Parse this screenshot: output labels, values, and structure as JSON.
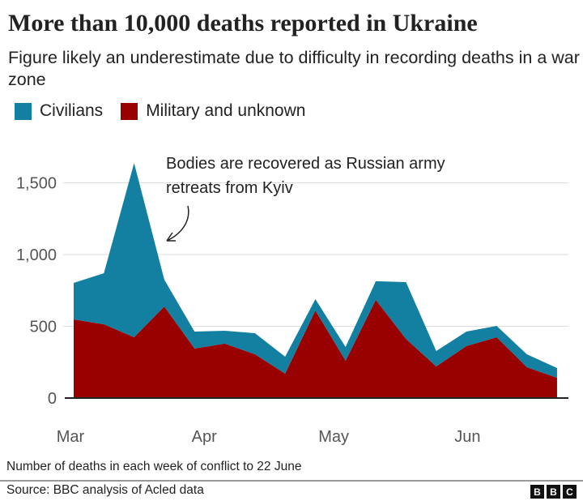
{
  "header": {
    "title": "More than 10,000 deaths reported in Ukraine",
    "subtitle": "Figure likely an underestimate due to difficulty in recording deaths in a war zone"
  },
  "colors": {
    "civilians": "#1380A1",
    "military": "#990000"
  },
  "chart_data": {
    "type": "area",
    "stacked": true,
    "x": [
      "2022-03-01",
      "2022-03-08",
      "2022-03-15",
      "2022-03-22",
      "2022-03-29",
      "2022-04-05",
      "2022-04-12",
      "2022-04-19",
      "2022-04-26",
      "2022-05-03",
      "2022-05-10",
      "2022-05-17",
      "2022-05-24",
      "2022-05-31",
      "2022-06-07",
      "2022-06-14",
      "2022-06-21"
    ],
    "series": [
      {
        "name": "Military and unknown",
        "color": "#990000",
        "values": [
          548,
          514,
          424,
          638,
          345,
          379,
          305,
          170,
          610,
          260,
          684,
          412,
          220,
          362,
          424,
          215,
          141
        ]
      },
      {
        "name": "Civilians",
        "color": "#1380A1",
        "values": [
          254,
          356,
          1214,
          187,
          118,
          90,
          147,
          118,
          79,
          96,
          130,
          396,
          108,
          101,
          79,
          90,
          68
        ]
      }
    ],
    "ylim": [
      0,
      1700
    ],
    "y_ticks": [
      0,
      500,
      1000,
      1500
    ],
    "y_tick_labels": [
      "0",
      "500",
      "1,000",
      "1,500"
    ],
    "x_ticks": [
      "2022-03-01",
      "2022-04-01",
      "2022-05-01",
      "2022-06-01"
    ],
    "x_tick_labels": [
      "Mar",
      "Apr",
      "May",
      "Jun"
    ],
    "grid": true,
    "legend": [
      "Civilians",
      "Military and unknown"
    ],
    "legend_position": "top-left",
    "annotation": {
      "line1": "Bodies are recovered as Russian army",
      "line2": "retreats from Kyiv",
      "x": "2022-03-22"
    }
  },
  "footer": {
    "note": "Number of deaths in each week of conflict to 22 June",
    "source": "Source: BBC analysis of Acled data",
    "logo": "BBC"
  }
}
